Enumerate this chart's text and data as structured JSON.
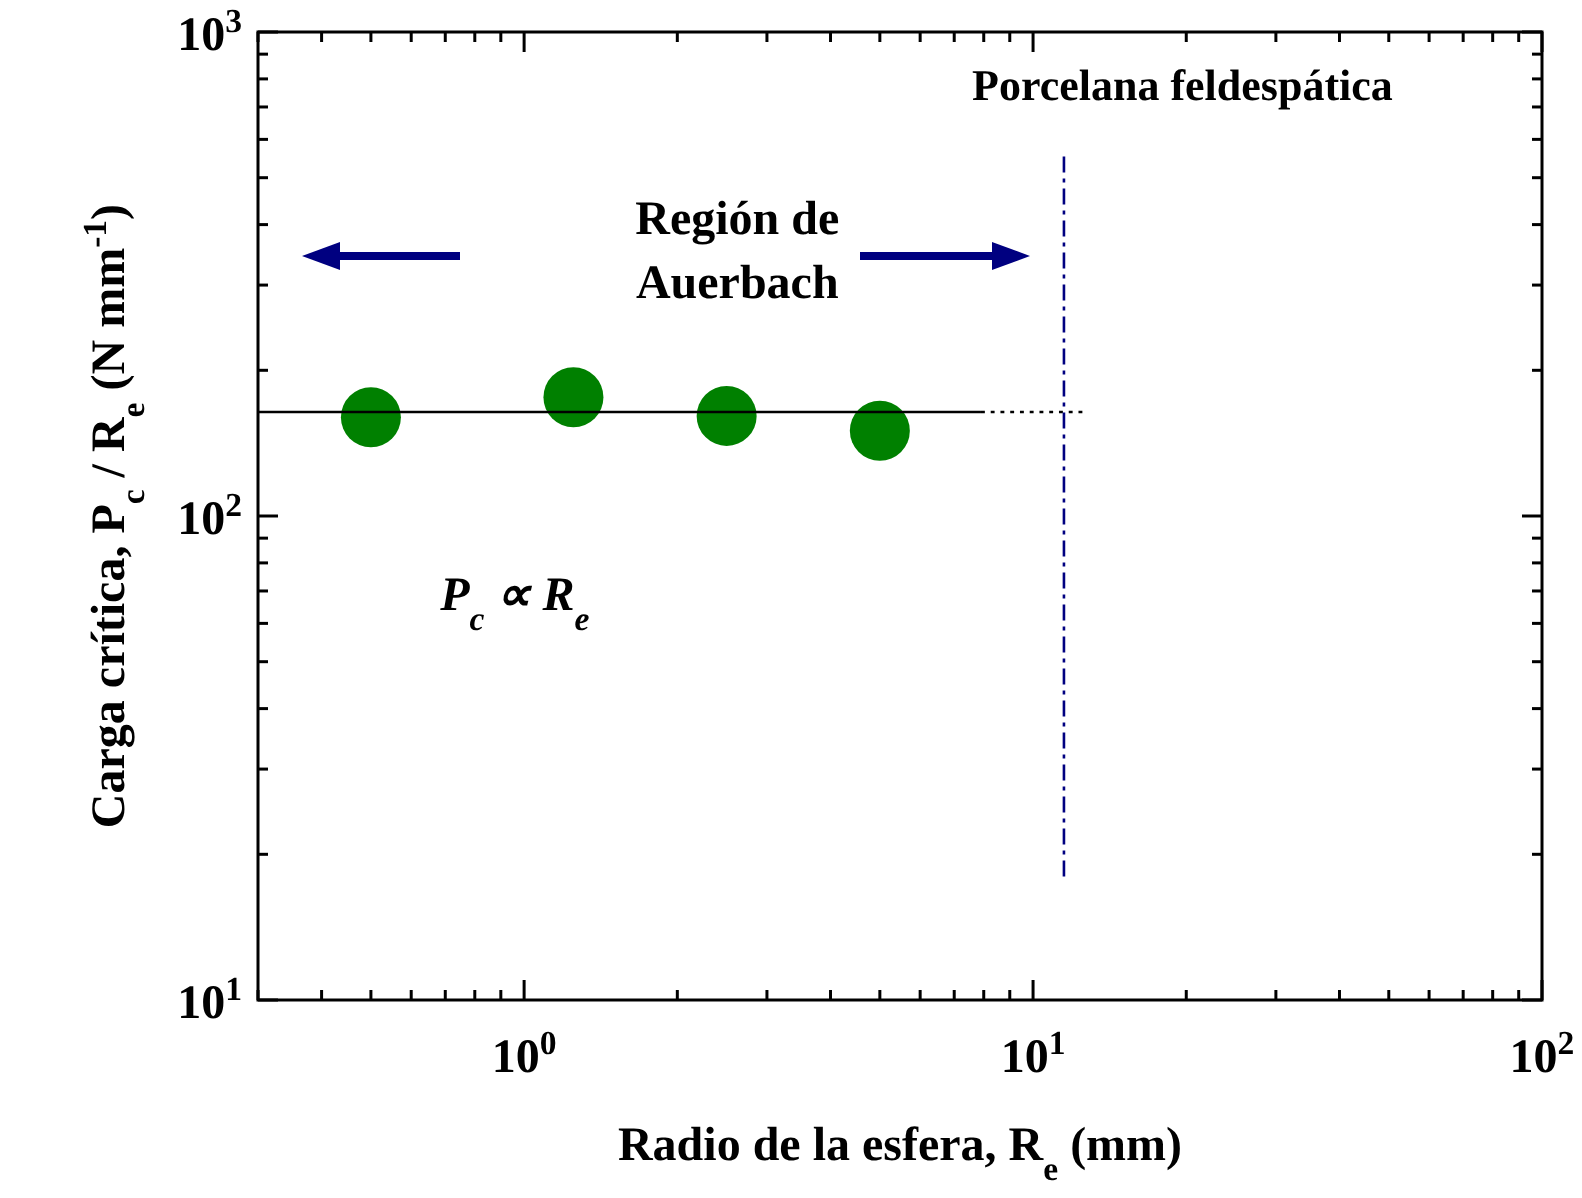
{
  "chart_data": {
    "type": "scatter",
    "title": "Porcelana feldespática",
    "xlabel": "Radio de la esfera, R$_{e}$ (mm)",
    "ylabel": "Carga crítica, P$_{c}$ / R$_{e}$ (N mm$^{-1}$)",
    "log": "xy",
    "xlim": [
      0.3,
      100
    ],
    "ylim": [
      10,
      1000
    ],
    "xticks": [
      {
        "value": 0.3,
        "label": null
      },
      {
        "value": 0.4,
        "label": null
      },
      {
        "value": 0.5,
        "label": null
      },
      {
        "value": 0.6,
        "label": null
      },
      {
        "value": 0.7,
        "label": null
      },
      {
        "value": 0.8,
        "label": null
      },
      {
        "value": 0.9,
        "label": null
      },
      {
        "value": 1,
        "label": "10$^{0}$"
      },
      {
        "value": 2,
        "label": null
      },
      {
        "value": 3,
        "label": null
      },
      {
        "value": 4,
        "label": null
      },
      {
        "value": 5,
        "label": null
      },
      {
        "value": 6,
        "label": null
      },
      {
        "value": 7,
        "label": null
      },
      {
        "value": 8,
        "label": null
      },
      {
        "value": 9,
        "label": null
      },
      {
        "value": 10,
        "label": "10$^{1}$"
      },
      {
        "value": 20,
        "label": null
      },
      {
        "value": 30,
        "label": null
      },
      {
        "value": 40,
        "label": null
      },
      {
        "value": 50,
        "label": null
      },
      {
        "value": 60,
        "label": null
      },
      {
        "value": 70,
        "label": null
      },
      {
        "value": 80,
        "label": null
      },
      {
        "value": 90,
        "label": null
      },
      {
        "value": 100,
        "label": "10$^{2}$"
      }
    ],
    "yticks": [
      {
        "value": 10,
        "label": "10$^{1}$"
      },
      {
        "value": 20,
        "label": null
      },
      {
        "value": 30,
        "label": null
      },
      {
        "value": 40,
        "label": null
      },
      {
        "value": 50,
        "label": null
      },
      {
        "value": 60,
        "label": null
      },
      {
        "value": 70,
        "label": null
      },
      {
        "value": 80,
        "label": null
      },
      {
        "value": 90,
        "label": null
      },
      {
        "value": 100,
        "label": "10$^{2}$"
      },
      {
        "value": 200,
        "label": null
      },
      {
        "value": 300,
        "label": null
      },
      {
        "value": 400,
        "label": null
      },
      {
        "value": 500,
        "label": null
      },
      {
        "value": 600,
        "label": null
      },
      {
        "value": 700,
        "label": null
      },
      {
        "value": 800,
        "label": null
      },
      {
        "value": 900,
        "label": null
      },
      {
        "value": 1000,
        "label": "10$^{3}$"
      }
    ],
    "grid": false,
    "marker": "circle",
    "series": [
      {
        "color": "#008000",
        "x": [
          0.5,
          1.25,
          2.5,
          5
        ],
        "values": [
          160,
          176,
          161,
          150
        ]
      },
      {
        "type": "line",
        "color": "#000000",
        "x": [
          0.3,
          7.9
        ],
        "values": [
          164,
          164
        ],
        "marker": "none",
        "line_style": "solid"
      },
      {
        "type": "line",
        "color": "#000000",
        "x": [
          7.9,
          12.5
        ],
        "values": [
          164,
          164
        ],
        "marker": "none",
        "line_style": "dotted"
      },
      {
        "type": "line",
        "color": "#000080",
        "x": [
          11.5,
          11.5
        ],
        "values": [
          553,
          18
        ],
        "marker": "none",
        "line_style": "dashed"
      }
    ],
    "annotations": [
      "Región de Auerbach",
      "P$_{c}$ ∝ R$_{e}$"
    ]
  }
}
